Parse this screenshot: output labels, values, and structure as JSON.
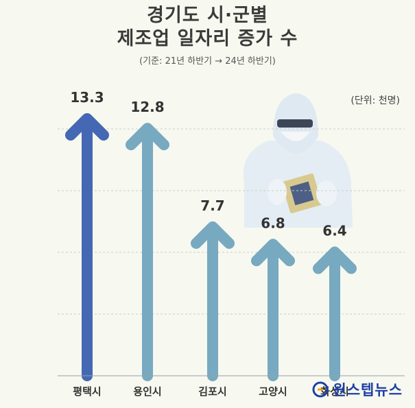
{
  "chart_data": {
    "type": "bar",
    "title_lines": [
      "경기도 시·군별",
      "제조업 일자리 증가 수"
    ],
    "subtitle": "(기준: 21년 하반기 → 24년 하반기)",
    "unit": "(단위: 천명)",
    "categories": [
      "평택시",
      "용인시",
      "김포시",
      "고양시",
      "화성시"
    ],
    "values": [
      13.3,
      12.8,
      7.7,
      6.8,
      6.4
    ],
    "value_labels": [
      "13.3",
      "12.8",
      "7.7",
      "6.8",
      "6.4"
    ],
    "ylim": [
      0,
      14
    ],
    "grid": true,
    "highlight_color": "#4468b3",
    "bar_color": "#77a9c1",
    "label_color": "#333333"
  },
  "brand": {
    "name": "원스텝뉴스",
    "logo_icon": "brand-logo-icon"
  }
}
